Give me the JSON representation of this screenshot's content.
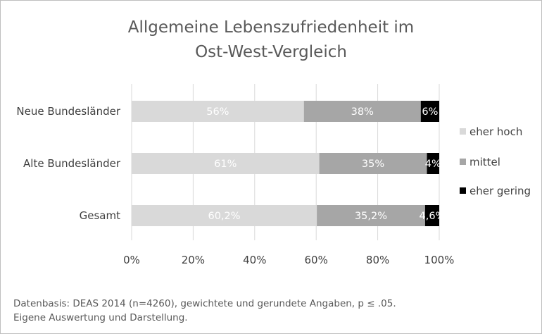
{
  "chart_data": {
    "type": "bar",
    "orientation": "horizontal",
    "stacked": true,
    "title_lines": [
      "Allgemeine Lebenszufriedenheit  im",
      "Ost-West-Vergleich"
    ],
    "categories": [
      "Neue Bundesländer",
      "Alte Bundesländer",
      "Gesamt"
    ],
    "series": [
      {
        "name": "eher hoch",
        "color": "#d9d9d9",
        "label_color": "#ffffff",
        "values": [
          56,
          61,
          60.2
        ],
        "labels": [
          "56%",
          "61%",
          "60,2%"
        ]
      },
      {
        "name": "mittel",
        "color": "#a6a6a6",
        "label_color": "#ffffff",
        "values": [
          38,
          35,
          35.2
        ],
        "labels": [
          "38%",
          "35%",
          "35,2%"
        ]
      },
      {
        "name": "eher gering",
        "color": "#000000",
        "label_color": "#ffffff",
        "values": [
          6,
          4,
          4.6
        ],
        "labels": [
          "6%",
          "4%",
          "4,6%"
        ]
      }
    ],
    "xlim": [
      0,
      100
    ],
    "xticks": [
      "0%",
      "20%",
      "40%",
      "60%",
      "80%",
      "100%"
    ],
    "grid": true,
    "legend_position": "right"
  },
  "source_lines": [
    "Datenbasis: DEAS 2014 (n=4260), gewichtete und gerundete Angaben, p ≤ .05.",
    "Eigene Auswertung und Darstellung."
  ]
}
